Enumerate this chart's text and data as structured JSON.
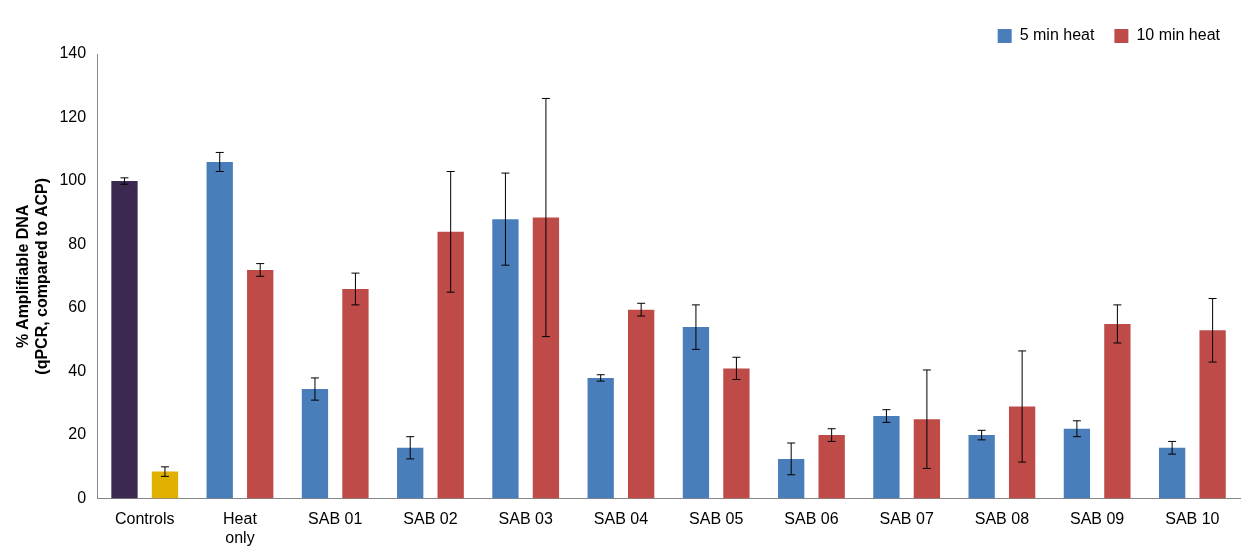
{
  "chart_data": {
    "type": "bar",
    "ylabel": "% Amplifiable DNA (qPCR, compared to ACP)",
    "categories": [
      "Controls",
      "Heat only",
      "SAB 01",
      "SAB 02",
      "SAB 03",
      "SAB 04",
      "SAB 05",
      "SAB 06",
      "SAB 07",
      "SAB 08",
      "SAB 09",
      "SAB 10"
    ],
    "series": [
      {
        "name": "5 min heat",
        "color": "#4a7ebb",
        "colors": [
          "#3b2950",
          "#4a7ebb",
          "#4a7ebb",
          "#4a7ebb",
          "#4a7ebb",
          "#4a7ebb",
          "#4a7ebb",
          "#4a7ebb",
          "#4a7ebb",
          "#4a7ebb",
          "#4a7ebb",
          "#4a7ebb"
        ],
        "values": [
          100,
          106,
          34.5,
          16,
          88,
          38,
          54,
          12.5,
          26,
          20,
          22,
          16
        ],
        "errors": [
          1,
          3,
          3.5,
          3.5,
          14.5,
          1,
          7,
          5,
          2,
          1.5,
          2.5,
          2
        ]
      },
      {
        "name": "10 min heat",
        "color": "#be4b48",
        "colors": [
          "#e0b000",
          "#be4b48",
          "#be4b48",
          "#be4b48",
          "#be4b48",
          "#be4b48",
          "#be4b48",
          "#be4b48",
          "#be4b48",
          "#be4b48",
          "#be4b48",
          "#be4b48"
        ],
        "values": [
          8.5,
          72,
          66,
          84,
          88.5,
          59.5,
          41,
          20,
          25,
          29,
          55,
          53
        ],
        "errors": [
          1.5,
          2,
          5,
          19,
          37.5,
          2,
          3.5,
          2,
          15.5,
          17.5,
          6,
          10
        ]
      }
    ],
    "ylim": [
      0,
      140
    ],
    "yticks": [
      0,
      20,
      40,
      60,
      80,
      100,
      120,
      140
    ],
    "grid": false,
    "legend": "top right"
  }
}
